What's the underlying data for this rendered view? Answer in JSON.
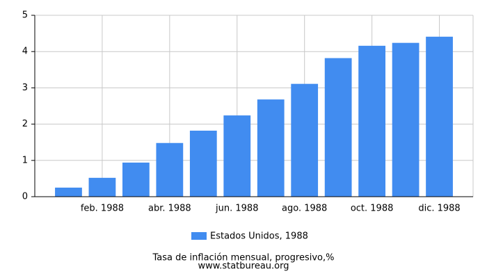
{
  "chart_data": {
    "type": "bar",
    "title": "Tasa de inflación mensual, progresivo,%",
    "source": "www.statbureau.org",
    "categories": [
      null,
      "feb. 1988",
      null,
      "abr. 1988",
      null,
      "jun. 1988",
      null,
      "ago. 1988",
      null,
      "oct. 1988",
      null,
      "dic. 1988"
    ],
    "series": [
      {
        "name": "Estados Unidos, 1988",
        "color": "#418cf0",
        "values": [
          0.25,
          0.52,
          0.94,
          1.48,
          1.82,
          2.24,
          2.68,
          3.11,
          3.82,
          4.16,
          4.24,
          4.41
        ]
      }
    ],
    "ylim": [
      0,
      5
    ],
    "yticks": [
      0,
      1,
      2,
      3,
      4,
      5
    ],
    "grid": true,
    "legend": "bottom"
  }
}
